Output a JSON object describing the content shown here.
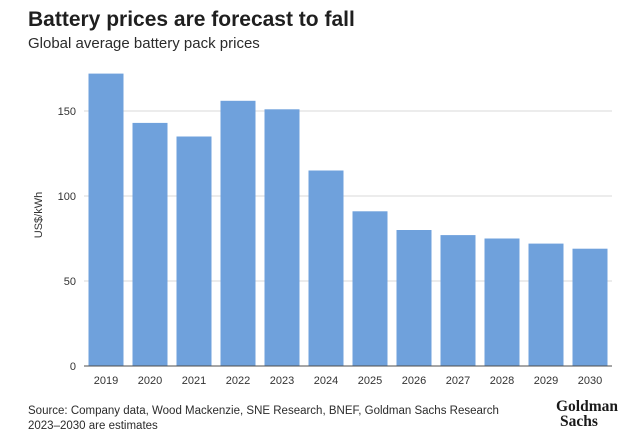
{
  "header": {
    "title": "Battery prices are forecast to fall",
    "subtitle": "Global average battery pack prices"
  },
  "footer": {
    "source_line1": "Source: Company data, Wood Mackenzie, SNE Research, BNEF, Goldman Sachs Research",
    "source_line2": "2023–2030 are estimates"
  },
  "logo": {
    "line1": "Goldman",
    "line2": "Sachs"
  },
  "colors": {
    "bar": "#6fa1dc",
    "grid": "#d9d9d9",
    "axis": "#4d4d4d"
  },
  "chart_data": {
    "type": "bar",
    "title": "Battery prices are forecast to fall",
    "subtitle": "Global average battery pack prices",
    "xlabel": "",
    "ylabel": "US$/kWh",
    "categories": [
      "2019",
      "2020",
      "2021",
      "2022",
      "2023",
      "2024",
      "2025",
      "2026",
      "2027",
      "2028",
      "2029",
      "2030"
    ],
    "values": [
      172,
      143,
      135,
      156,
      151,
      115,
      91,
      80,
      77,
      75,
      72,
      69
    ],
    "ylim": [
      0,
      180
    ],
    "yticks": [
      0,
      50,
      100,
      150
    ],
    "grid": true,
    "legend": "none"
  }
}
